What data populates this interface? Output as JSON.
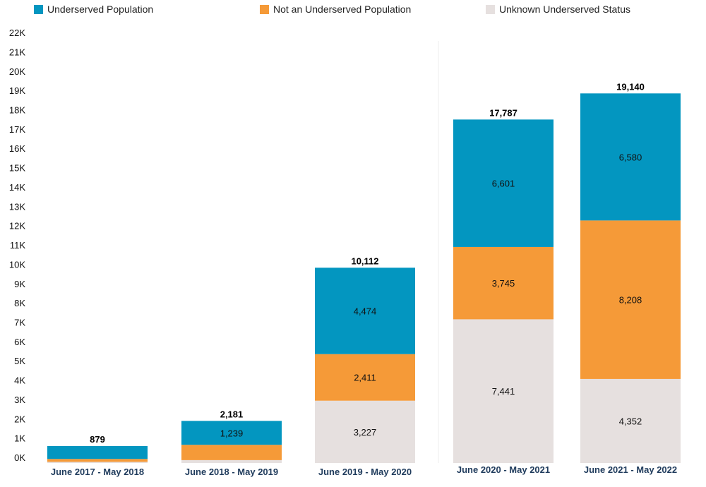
{
  "chart_data": {
    "type": "bar",
    "stacked": true,
    "categories": [
      "June 2017 - May 2018",
      "June 2018 - May 2019",
      "June 2019 - May 2020",
      "June 2020 - May 2021",
      "June 2021 - May 2022"
    ],
    "series": [
      {
        "name": "Unknown Underserved Status",
        "color": "#e6e0df",
        "values": [
          60,
          150,
          3227,
          7441,
          4352
        ],
        "labels": [
          "",
          "",
          "3,227",
          "7,441",
          "4,352"
        ]
      },
      {
        "name": "Not an Underserved Population",
        "color": "#f59a38",
        "values": [
          150,
          792,
          2411,
          3745,
          8208
        ],
        "labels": [
          "",
          "",
          "2,411",
          "3,745",
          "8,208"
        ]
      },
      {
        "name": "Underserved Population",
        "color": "#0396c0",
        "values": [
          669,
          1239,
          4474,
          6601,
          6580
        ],
        "labels": [
          "",
          "1,239",
          "4,474",
          "6,601",
          "6,580"
        ]
      }
    ],
    "totals": [
      "879",
      "2,181",
      "10,112",
      "17,787",
      "19,140"
    ],
    "y_ticks": [
      "0K",
      "1K",
      "2K",
      "3K",
      "4K",
      "5K",
      "6K",
      "7K",
      "8K",
      "9K",
      "10K",
      "11K",
      "12K",
      "13K",
      "14K",
      "15K",
      "16K",
      "17K",
      "18K",
      "19K",
      "20K",
      "21K",
      "22K"
    ],
    "ylim": [
      0,
      22000
    ],
    "legend_position": "top",
    "grid": false
  },
  "legend": [
    {
      "label": "Underserved Population",
      "color": "#0396c0"
    },
    {
      "label": "Not an Underserved Population",
      "color": "#f59a38"
    },
    {
      "label": "Unknown Underserved Status",
      "color": "#e6e0df"
    }
  ]
}
